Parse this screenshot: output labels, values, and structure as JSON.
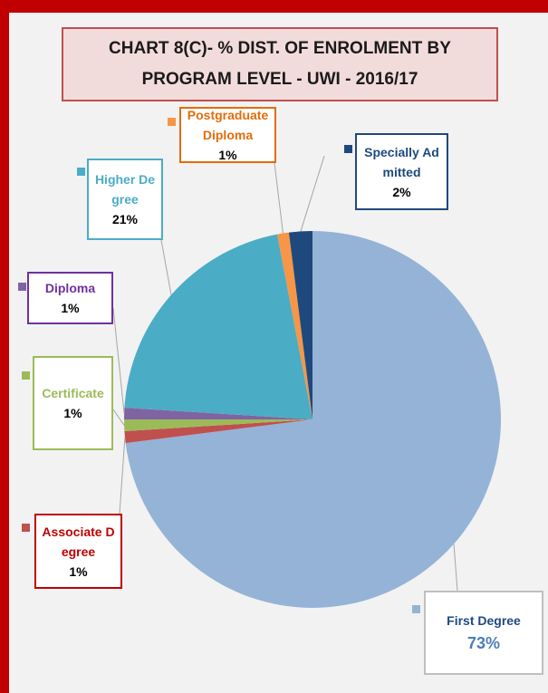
{
  "chart_data": {
    "type": "pie",
    "title": "CHART  8(C)- % DIST. OF ENROLMENT BY PROGRAM LEVEL - UWI - 2016/17",
    "categories": [
      "First Degree",
      "Associate Degree",
      "Certificate",
      "Diploma",
      "Higher Degree",
      "Postgraduate Diploma",
      "Specially Admitted"
    ],
    "values": [
      73,
      1,
      1,
      1,
      21,
      1,
      2
    ],
    "value_labels": [
      "73%",
      "1%",
      "1%",
      "1%",
      "21%",
      "1%",
      "2%"
    ],
    "colors": [
      "#95b3d7",
      "#c0504d",
      "#9bbb59",
      "#8064a2",
      "#4bacc6",
      "#f79646",
      "#1f497d"
    ],
    "label_colors": [
      "#1f497d",
      "#c00000",
      "#9bbb59",
      "#7030a0",
      "#4bacc6",
      "#e36c09",
      "#1f497d"
    ]
  }
}
